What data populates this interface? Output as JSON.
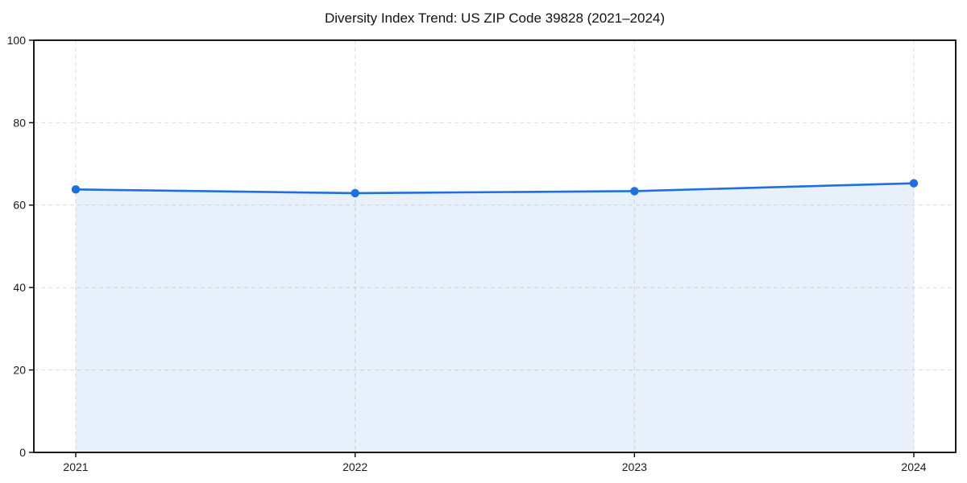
{
  "chart_data": {
    "type": "area",
    "title": "Diversity Index Trend: US ZIP Code 39828 (2021–2024)",
    "x": [
      "2021",
      "2022",
      "2023",
      "2024"
    ],
    "series": [
      {
        "name": "Diversity Index",
        "values": [
          63.8,
          62.9,
          63.4,
          65.3
        ]
      }
    ],
    "xlabel": "",
    "ylabel": "",
    "ylim": [
      0,
      100
    ],
    "yticks": [
      0,
      20,
      40,
      60,
      80,
      100
    ],
    "grid": "dashed",
    "legend": "none",
    "line_color": "#1e6fe0",
    "marker_color": "#1e6fe0",
    "area_fill_color": "#1e6fe0",
    "area_fill_opacity": 0.1,
    "grid_color": "#dcdcdc",
    "frame_color": "#000000",
    "tick_label_color": "#1a1a1a",
    "title_color": "#111111"
  }
}
